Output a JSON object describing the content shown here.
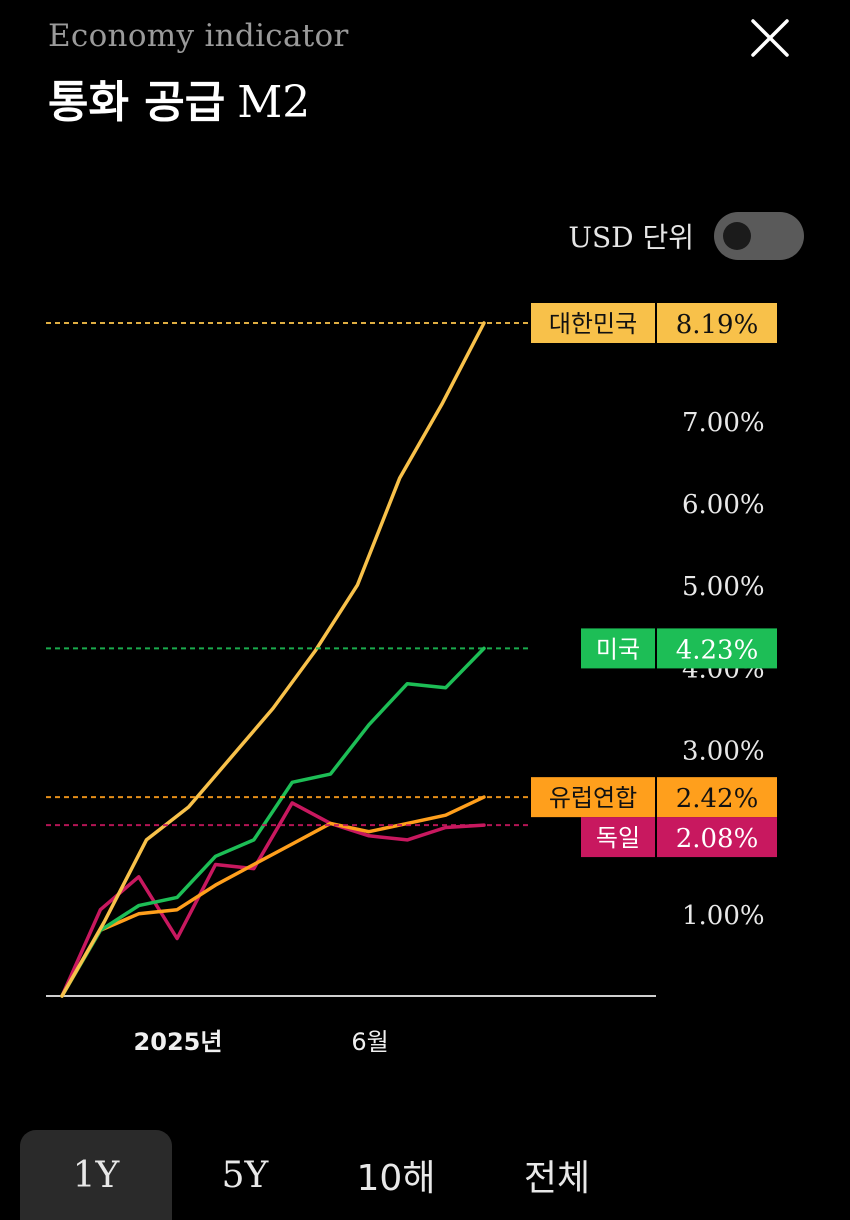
{
  "header": {
    "subtitle": "Economy indicator",
    "title_kr": "통화 공급",
    "title_m2": "M2",
    "close_icon": "close-icon"
  },
  "usd_toggle": {
    "label": "USD 단위",
    "on": false
  },
  "tabs": [
    {
      "label": "1Y",
      "active": true
    },
    {
      "label": "5Y",
      "active": false
    },
    {
      "label": "10해",
      "active": false
    },
    {
      "label": "전체",
      "active": false
    }
  ],
  "chart_data": {
    "type": "line",
    "title": "",
    "xlabel": "",
    "ylabel": "",
    "ylim": [
      0,
      8.19
    ],
    "yticks": [
      "1.00%",
      "3.00%",
      "4.00%",
      "5.00%",
      "6.00%",
      "7.00%"
    ],
    "xticks": [
      "2025년",
      "6월"
    ],
    "grid": false,
    "series": [
      {
        "name": "대한민국",
        "color": "#F8C14A",
        "last_label": "8.19%",
        "values": [
          0,
          0.9,
          1.9,
          2.3,
          2.9,
          3.5,
          4.2,
          5.0,
          6.3,
          7.2,
          8.19
        ]
      },
      {
        "name": "미국",
        "color": "#1DBE56",
        "last_label": "4.23%",
        "values": [
          0,
          0.8,
          1.1,
          1.2,
          1.7,
          1.9,
          2.6,
          2.7,
          3.3,
          3.8,
          3.75,
          4.23
        ]
      },
      {
        "name": "유럽연합",
        "color": "#FF9F1C",
        "last_label": "2.42%",
        "values": [
          0,
          0.8,
          1.0,
          1.05,
          1.35,
          1.6,
          1.85,
          2.1,
          2.0,
          2.1,
          2.2,
          2.42
        ]
      },
      {
        "name": "독일",
        "color": "#C8185F",
        "last_label": "2.08%",
        "values": [
          0,
          1.05,
          1.45,
          0.7,
          1.6,
          1.55,
          2.35,
          2.1,
          1.95,
          1.9,
          2.05,
          2.08
        ]
      }
    ]
  }
}
